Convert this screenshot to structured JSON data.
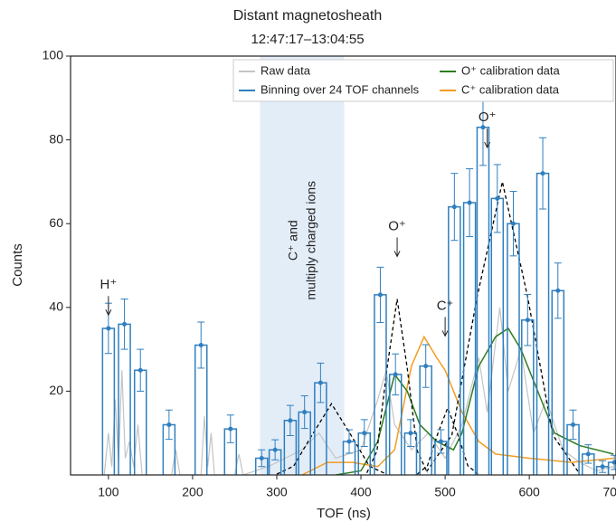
{
  "chart_data": {
    "type": "histogram-step",
    "title": "Distant magnetosheath",
    "subtitle": "12:47:17–13:04:55",
    "x_label": "TOF (ns)",
    "y_label": "Counts",
    "xlim": [
      55,
      703
    ],
    "ylim": [
      0,
      100
    ],
    "xticks": [
      100,
      200,
      300,
      400,
      500,
      600,
      700
    ],
    "yticks": [
      20,
      40,
      60,
      80,
      100
    ],
    "shaded_region": {
      "x": [
        280,
        380
      ],
      "color": "#e3edf8",
      "label_lines": [
        "C⁺ and",
        "multiply charged ions"
      ]
    },
    "annotations": [
      "H⁺",
      "O⁺",
      "C⁺",
      "O⁺"
    ],
    "series": [
      {
        "name": "Raw data",
        "color": "#c4c4c4",
        "x": [
          95,
          100,
          104,
          108,
          112,
          116,
          120,
          125,
          130,
          135,
          140,
          175,
          180,
          185,
          210,
          214,
          218,
          222,
          226,
          250,
          255,
          260,
          290,
          310,
          330,
          350,
          370,
          400,
          420,
          430,
          440,
          460,
          480,
          500,
          520,
          540,
          550,
          565,
          575,
          590,
          605,
          620,
          640,
          660,
          680,
          700
        ],
        "values": [
          0,
          10,
          2,
          18,
          3,
          25,
          4,
          8,
          2,
          12,
          0,
          0,
          6,
          0,
          0,
          14,
          2,
          10,
          0,
          0,
          5,
          0,
          2,
          4,
          6,
          10,
          4,
          6,
          18,
          25,
          12,
          6,
          10,
          4,
          12,
          28,
          15,
          40,
          20,
          30,
          10,
          18,
          6,
          3,
          1,
          2
        ]
      },
      {
        "name": "Binning over 24 TOF channels",
        "color": "#2f7fbf",
        "x": [
          100,
          119,
          138,
          172,
          210,
          245,
          282,
          298,
          316,
          333,
          352,
          386,
          404,
          423,
          441,
          459,
          477,
          495,
          511,
          529,
          545,
          562,
          581,
          598,
          616,
          634,
          652,
          670,
          687,
          701
        ],
        "values": [
          35,
          36,
          25,
          12,
          31,
          11,
          4,
          6,
          13,
          15,
          22,
          8,
          10,
          43,
          24,
          10,
          26,
          8,
          64,
          65,
          83,
          66,
          60,
          37,
          72,
          44,
          12,
          5,
          2,
          3
        ],
        "errors": [
          6,
          6,
          5,
          3.5,
          5.5,
          3.3,
          2,
          2.4,
          3.6,
          3.9,
          4.7,
          2.8,
          3.2,
          6.6,
          4.9,
          3.2,
          5.1,
          2.8,
          8,
          8.1,
          9.1,
          8.1,
          7.7,
          6.1,
          8.5,
          6.6,
          3.5,
          2.2,
          1.4,
          1.7
        ]
      },
      {
        "name": "O⁺ calibration data",
        "color": "#2e7d1e",
        "x": [
          370,
          400,
          420,
          440,
          455,
          470,
          490,
          510,
          520,
          540,
          560,
          575,
          590,
          610,
          630,
          660,
          700
        ],
        "values": [
          0,
          1,
          8,
          24,
          20,
          12,
          8,
          6,
          10,
          26,
          33,
          35,
          30,
          20,
          10,
          7,
          5
        ]
      },
      {
        "name": "C⁺ calibration data",
        "color": "#f39c1f",
        "x": [
          330,
          360,
          390,
          420,
          440,
          460,
          475,
          490,
          500,
          520,
          540,
          560,
          600,
          650,
          700
        ],
        "values": [
          0,
          3,
          3,
          2,
          6,
          26,
          33,
          28,
          25,
          15,
          8,
          5,
          4,
          3,
          4
        ]
      }
    ],
    "model_curves": [
      {
        "x": [
          300,
          320,
          340,
          365,
          390,
          410,
          430
        ],
        "values": [
          0.2,
          2.1,
          8.9,
          17,
          8.9,
          2.1,
          0.2
        ]
      },
      {
        "x": [
          407,
          419,
          431,
          443,
          455,
          467,
          479
        ],
        "values": [
          0.5,
          5.7,
          25.5,
          42,
          25.5,
          5.7,
          0.5
        ]
      },
      {
        "x": [
          467,
          479,
          491,
          503,
          515,
          527,
          539
        ],
        "values": [
          0.2,
          2.2,
          9.7,
          16,
          9.7,
          2.2,
          0.2
        ]
      },
      {
        "x": [
          478,
          508,
          538,
          568,
          598,
          628,
          658
        ],
        "values": [
          0.8,
          9.5,
          42.5,
          70,
          42.5,
          9.5,
          0.8
        ]
      }
    ]
  }
}
